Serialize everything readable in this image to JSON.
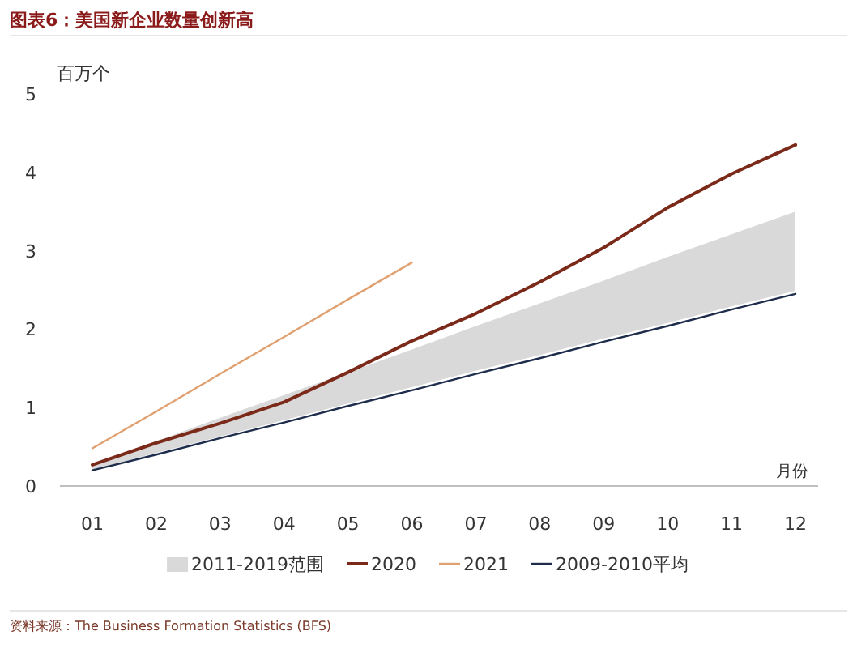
{
  "chart_data": {
    "type": "line",
    "title": "图表6：美国新企业数量创新高",
    "ylabel": "百万个",
    "xlabel": "月份",
    "categories": [
      "01",
      "02",
      "03",
      "04",
      "05",
      "06",
      "07",
      "08",
      "09",
      "10",
      "11",
      "12"
    ],
    "ylim": [
      0,
      5
    ],
    "yticks": [
      0,
      1,
      2,
      3,
      4,
      5
    ],
    "grid": false,
    "legend": "bottom",
    "marker": "none",
    "line_style": "solid",
    "series": [
      {
        "name": "2011-2019范围",
        "type": "area",
        "color": "#d9d9d9",
        "values": [
          null,
          null,
          null,
          null,
          null,
          null,
          null,
          null,
          null,
          null,
          null,
          null
        ],
        "lower": [
          0.21,
          0.42,
          0.63,
          0.84,
          1.05,
          1.26,
          1.47,
          1.67,
          1.88,
          2.08,
          2.29,
          2.49
        ],
        "upper": [
          0.28,
          0.57,
          0.87,
          1.16,
          1.45,
          1.74,
          2.04,
          2.33,
          2.62,
          2.92,
          3.21,
          3.5
        ]
      },
      {
        "name": "2020",
        "color": "#7b2a1a",
        "values": [
          0.27,
          0.55,
          0.8,
          1.07,
          1.45,
          1.85,
          2.2,
          2.6,
          3.04,
          3.55,
          3.98,
          4.35
        ]
      },
      {
        "name": "2021",
        "color": "#e0a070",
        "values": [
          0.48,
          0.95,
          1.43,
          1.9,
          2.38,
          2.85,
          null,
          null,
          null,
          null,
          null,
          null
        ]
      },
      {
        "name": "2009-2010平均",
        "color": "#1f2d4d",
        "values": [
          0.2,
          0.4,
          0.61,
          0.81,
          1.02,
          1.22,
          1.43,
          1.63,
          1.84,
          2.04,
          2.25,
          2.45
        ]
      }
    ],
    "annotations": [
      "资料来源：The Business Formation Statistics (BFS)"
    ]
  }
}
